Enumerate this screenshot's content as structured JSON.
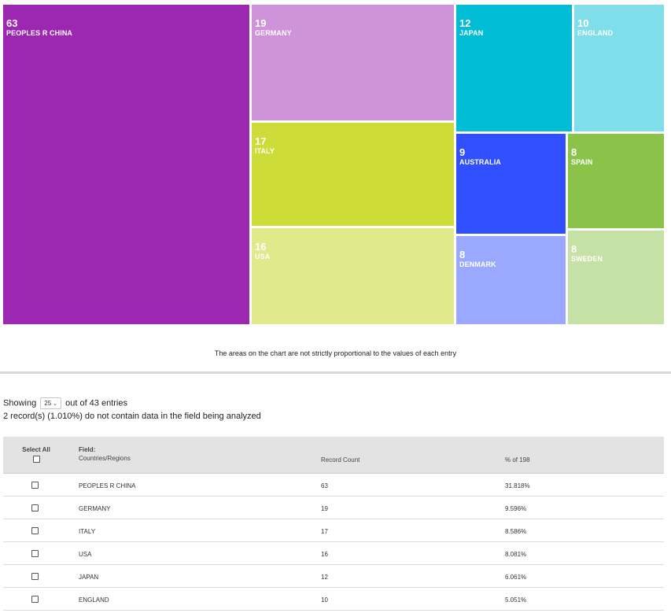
{
  "chart_data": {
    "type": "treemap",
    "entries": [
      {
        "name": "PEOPLES R CHINA",
        "value": 63,
        "color": "#9c27b0"
      },
      {
        "name": "GERMANY",
        "value": 19,
        "color": "#ce93d8"
      },
      {
        "name": "ITALY",
        "value": 17,
        "color": "#cddc39"
      },
      {
        "name": "USA",
        "value": 16,
        "color": "#e1e98b"
      },
      {
        "name": "JAPAN",
        "value": 12,
        "color": "#00bcd4"
      },
      {
        "name": "ENGLAND",
        "value": 10,
        "color": "#80deea"
      },
      {
        "name": "AUSTRALIA",
        "value": 9,
        "color": "#304ffe"
      },
      {
        "name": "SPAIN",
        "value": 8,
        "color": "#8bc34a"
      },
      {
        "name": "DENMARK",
        "value": 8,
        "color": "#9aa9ff"
      },
      {
        "name": "SWEDEN",
        "value": 8,
        "color": "#c5e1a5"
      }
    ]
  },
  "note": "The areas on the chart are not strictly proportional to the values of each entry",
  "showing": {
    "prefix": "Showing",
    "page_size": "25",
    "suffix": "out of 43 entries"
  },
  "records_note": "2 record(s) (1.010%) do not contain data in the field being analyzed",
  "table": {
    "select_all": "Select All",
    "field_label": "Field:",
    "field_name": "Countries/Regions",
    "count_header": "Record Count",
    "pct_header": "% of 198",
    "rows": [
      {
        "name": "PEOPLES R CHINA",
        "count": "63",
        "pct": "31.818%"
      },
      {
        "name": "GERMANY",
        "count": "19",
        "pct": "9.596%"
      },
      {
        "name": "ITALY",
        "count": "17",
        "pct": "8.586%"
      },
      {
        "name": "USA",
        "count": "16",
        "pct": "8.081%"
      },
      {
        "name": "JAPAN",
        "count": "12",
        "pct": "6.061%"
      },
      {
        "name": "ENGLAND",
        "count": "10",
        "pct": "5.051%"
      }
    ]
  }
}
